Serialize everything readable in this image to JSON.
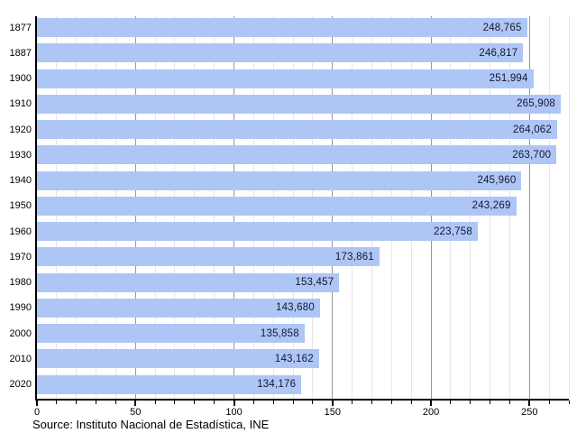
{
  "chart_data": {
    "type": "bar",
    "orientation": "horizontal",
    "title": "",
    "xlabel": "",
    "ylabel": "",
    "categories": [
      "1877",
      "1887",
      "1900",
      "1910",
      "1920",
      "1930",
      "1940",
      "1950",
      "1960",
      "1970",
      "1980",
      "1990",
      "2000",
      "2010",
      "2020"
    ],
    "values": [
      248765,
      246817,
      251994,
      265908,
      264062,
      263700,
      245960,
      243269,
      223758,
      173861,
      153457,
      143680,
      135858,
      143162,
      134176
    ],
    "value_labels": [
      "248,765",
      "246,817",
      "251,994",
      "265,908",
      "264,062",
      "263,700",
      "245,960",
      "243,269",
      "223,758",
      "173,861",
      "153,457",
      "143,680",
      "135,858",
      "143,162",
      "134,176"
    ],
    "x_axis": {
      "unit": "thousands",
      "min": 0,
      "max": 270,
      "minor_tick_step": 10,
      "major_tick_step": 50,
      "tick_labels": [
        "0",
        "50",
        "100",
        "150",
        "200",
        "250"
      ]
    },
    "grid": "vertical",
    "legend": "none",
    "source": "Source: Instituto Nacional de Estadística, INE",
    "colors": {
      "bar": "#aec6f6",
      "grid_minor": "#e6e6ec",
      "grid_major": "#979797",
      "axis": "#000000",
      "value_text": "#151530",
      "tick_text": "#000000"
    }
  }
}
